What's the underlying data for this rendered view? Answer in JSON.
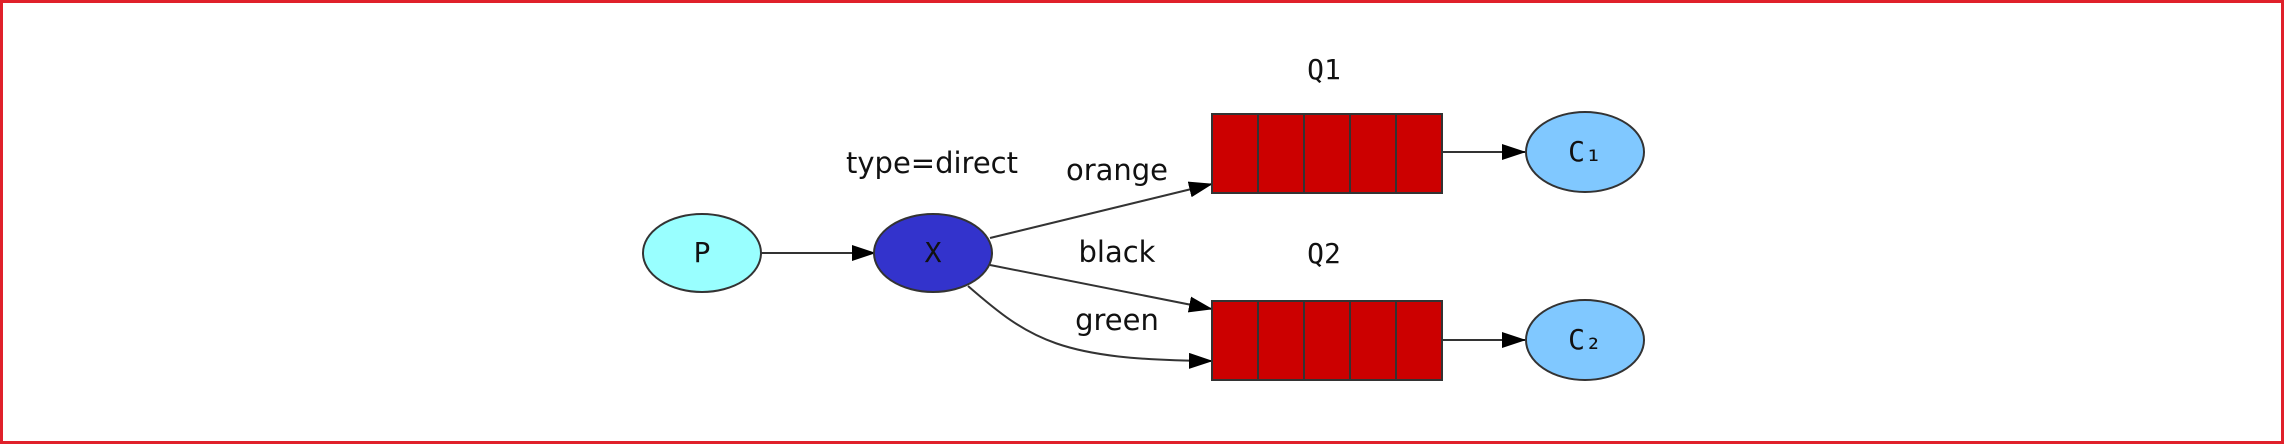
{
  "nodes": {
    "producer": {
      "label": "P",
      "fill": "#99ffff"
    },
    "exchange": {
      "label": "X",
      "fill": "#3333cc",
      "type_label": "type=direct"
    },
    "queue1": {
      "label": "Q1",
      "fill": "#cc0000"
    },
    "queue2": {
      "label": "Q2",
      "fill": "#cc0000"
    },
    "consumer1": {
      "label": "C₁",
      "fill": "#80c8ff"
    },
    "consumer2": {
      "label": "C₂",
      "fill": "#80c8ff"
    }
  },
  "edges": {
    "orange": {
      "label": "orange"
    },
    "black": {
      "label": "black"
    },
    "green": {
      "label": "green"
    }
  },
  "colors": {
    "frame_border": "#e0202a",
    "stroke": "#333333"
  }
}
